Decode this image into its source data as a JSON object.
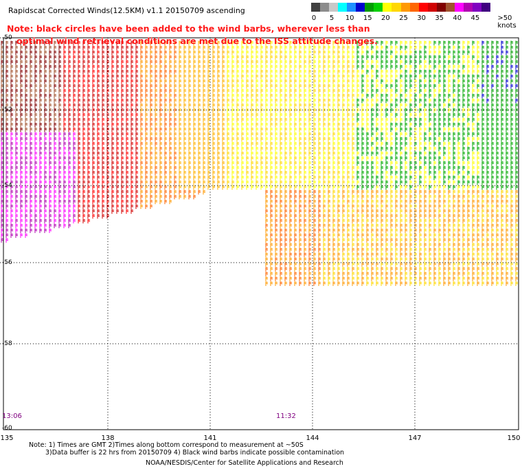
{
  "title": "Rapidscat Corrected Winds(12.5KM) v1.1 20150709 ascending",
  "note": {
    "line1": "Note: black circles have been added to the wind barbs, wherever less than",
    "line2": "optimal wind retrieval conditions are met due to the ISS attitude changes."
  },
  "legend": {
    "unit_label": ">50 knots",
    "ticks": [
      "0",
      "5",
      "10",
      "15",
      "20",
      "25",
      "30",
      "35",
      "40",
      "45"
    ],
    "colors": [
      "#404040",
      "#8c8c8c",
      "#c8c8c8",
      "#00ffff",
      "#1e90ff",
      "#0000cd",
      "#009c00",
      "#00d000",
      "#ffff00",
      "#ffd700",
      "#ff9900",
      "#ff6600",
      "#ff0000",
      "#d00000",
      "#800000",
      "#a0522d",
      "#ff00ff",
      "#b000b0",
      "#8000c0",
      "#400080"
    ]
  },
  "axes": {
    "lon_ticks": [
      "135",
      "138",
      "141",
      "144",
      "147",
      "150"
    ],
    "lat_ticks": [
      "-50",
      "-52",
      "-54",
      "-56",
      "-58",
      "-60"
    ]
  },
  "times": [
    "13:06",
    "11:32"
  ],
  "footnote": {
    "line1": "Note: 1) Times are GMT 2)Times along bottom correspond to measurement at ~50S",
    "line2": "3)Data buffer is 22 hrs from 20150709 4) Black wind barbs indicate possible contamination"
  },
  "credit": "NOAA/NESDIS/Center for Satellite Applications and Research"
}
